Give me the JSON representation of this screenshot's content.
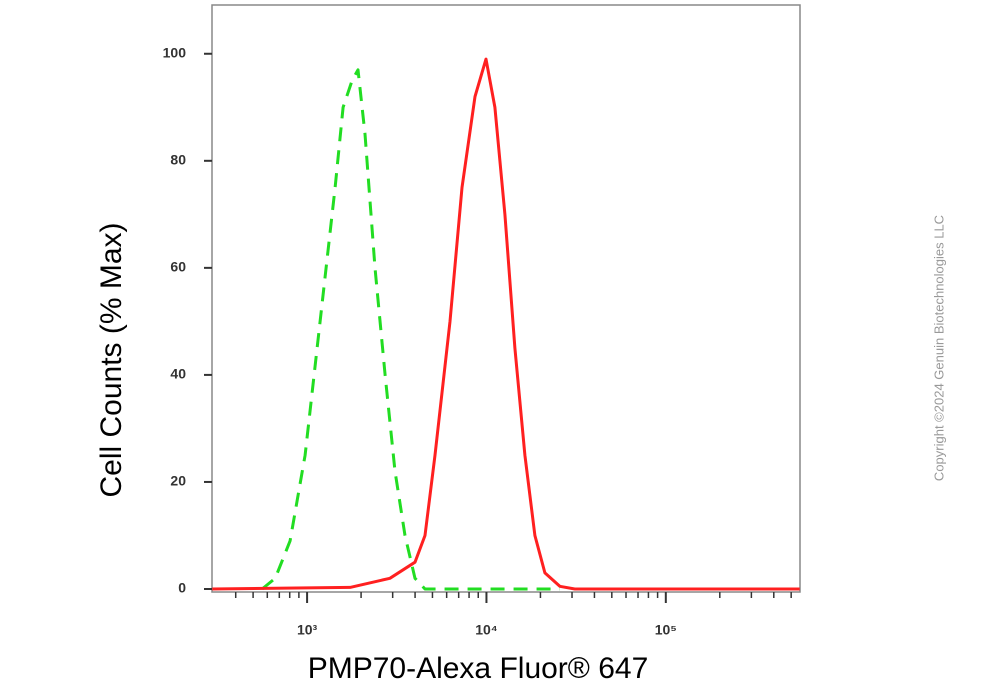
{
  "chart_data": {
    "type": "line",
    "x_label": "PMP70-Alexa Fluor® 647",
    "y_label": "Cell Counts (% Max)",
    "x_scale": "log",
    "xlim": [
      295,
      560000
    ],
    "ylim": [
      0,
      105
    ],
    "xticks": [
      {
        "value": 1000,
        "label": "10³"
      },
      {
        "value": 10000,
        "label": "10⁴"
      },
      {
        "value": 100000,
        "label": "10⁵"
      }
    ],
    "xminorticks": [
      400,
      500,
      600,
      700,
      800,
      900,
      2000,
      3000,
      4000,
      5000,
      6000,
      7000,
      8000,
      9000,
      20000,
      30000,
      40000,
      50000,
      60000,
      70000,
      80000,
      90000,
      200000,
      300000,
      400000,
      500000
    ],
    "yticks": [
      0,
      20,
      40,
      60,
      80,
      100
    ],
    "series": [
      {
        "color": "#22dd22",
        "dashed": true,
        "x": [
          561,
          664,
          804,
          975,
          1181,
          1432,
          1588,
          1782,
          1923,
          2104,
          2392,
          2721,
          3093,
          3516,
          3998,
          4543,
          25650
        ],
        "values": [
          0,
          2,
          9,
          25,
          50,
          75,
          90,
          95,
          97,
          85,
          60,
          40,
          22,
          10,
          2,
          0,
          0
        ]
      },
      {
        "color": "#ff2020",
        "dashed": false,
        "x": [
          296,
          1737,
          2897,
          3998,
          4543,
          5165,
          6266,
          7310,
          8636,
          9939,
          11150,
          12670,
          14410,
          16380,
          18620,
          21170,
          25650,
          31100,
          558000
        ],
        "values": [
          0,
          0.3,
          2,
          5,
          10,
          25,
          50,
          75,
          92,
          99,
          90,
          70,
          45,
          25,
          10,
          3,
          0.5,
          0,
          0
        ]
      }
    ]
  },
  "copyright": "Copyright ©2024 Genuin Biotechnologies LLC"
}
